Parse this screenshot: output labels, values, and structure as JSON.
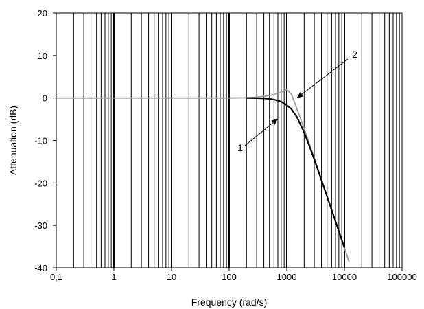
{
  "chart_data": {
    "type": "line",
    "x_scale": "log",
    "xlim": [
      0.1,
      100000
    ],
    "ylim": [
      -40,
      20
    ],
    "xlabel": "Frequency (rad/s)",
    "ylabel": "Attenuation (dB)",
    "x_ticks": [
      {
        "value": 0.1,
        "label": "0,1"
      },
      {
        "value": 1,
        "label": "1"
      },
      {
        "value": 10,
        "label": "10"
      },
      {
        "value": 100,
        "label": "100"
      },
      {
        "value": 1000,
        "label": "1000"
      },
      {
        "value": 10000,
        "label": "10000"
      },
      {
        "value": 100000,
        "label": "100000"
      }
    ],
    "y_ticks": [
      {
        "value": 20,
        "label": "20"
      },
      {
        "value": 10,
        "label": "10"
      },
      {
        "value": 0,
        "label": "0"
      },
      {
        "value": -10,
        "label": "-10"
      },
      {
        "value": -20,
        "label": "-20"
      },
      {
        "value": -30,
        "label": "-30"
      },
      {
        "value": -40,
        "label": "-40"
      }
    ],
    "grid": "vertical log grid lines",
    "series": [
      {
        "name": "1",
        "color": "#000000",
        "x": [
          200,
          300,
          400,
          500,
          600,
          700,
          800,
          900,
          1000,
          1200,
          1500,
          2000,
          2500,
          3000,
          4000,
          5000,
          6000,
          8000,
          10000
        ],
        "y": [
          0,
          -0.04,
          -0.1,
          -0.2,
          -0.4,
          -0.6,
          -0.9,
          -1.3,
          -1.7,
          -2.6,
          -4.5,
          -8.1,
          -11.5,
          -14.5,
          -19.4,
          -23.2,
          -26.4,
          -31.4,
          -35.3
        ]
      },
      {
        "name": "2",
        "color": "#999999",
        "x": [
          0.1,
          100,
          200,
          300,
          400,
          500,
          600,
          700,
          800,
          900,
          1000,
          1200,
          1500,
          2000,
          2500,
          3000,
          4000,
          5000,
          6000,
          8000,
          10000,
          12000
        ],
        "y": [
          0,
          0,
          0.04,
          0.2,
          0.4,
          0.6,
          0.8,
          1.1,
          1.4,
          1.7,
          2.0,
          0.9,
          -2.6,
          -7.2,
          -11.0,
          -14.2,
          -19.2,
          -23.1,
          -26.3,
          -31.3,
          -35.2,
          -38.6
        ]
      }
    ],
    "annotations": [
      {
        "label": "1",
        "series": "1",
        "points_to": [
          700,
          -2
        ]
      },
      {
        "label": "2",
        "series": "2",
        "points_to": [
          1500,
          0
        ]
      }
    ]
  }
}
